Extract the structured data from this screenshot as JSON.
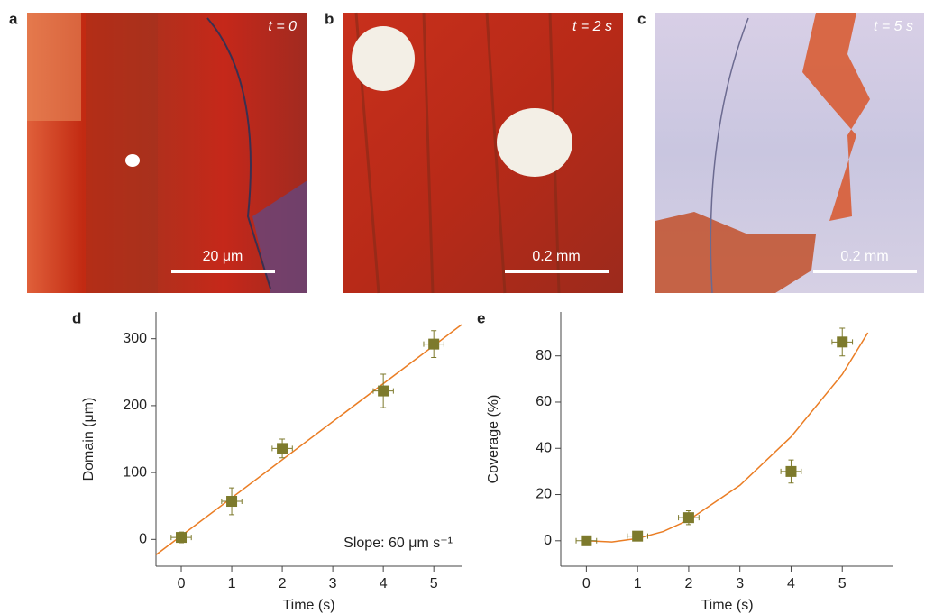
{
  "panels": [
    {
      "label": "a",
      "time": "t = 0",
      "scale_bar": "20 μm"
    },
    {
      "label": "b",
      "time": "t = 2 s",
      "scale_bar": "0.2 mm"
    },
    {
      "label": "c",
      "time": "t = 5 s",
      "scale_bar": "0.2 mm"
    }
  ],
  "chart_data": [
    {
      "type": "scatter",
      "label": "d",
      "x_label": "Time (s)",
      "y_label": "Domain (μm)",
      "annotation": "Slope: 60 μm s⁻¹",
      "x": [
        0,
        1,
        2,
        4,
        5
      ],
      "values": [
        3,
        57,
        136,
        222,
        292
      ],
      "yerr": [
        8,
        20,
        14,
        25,
        20
      ],
      "xerr": [
        0.2,
        0.2,
        0.2,
        0.2,
        0.2
      ],
      "color": "#7d7a2c",
      "fit": {
        "x": [
          -0.5,
          5.55
        ],
        "values": [
          -23,
          321
        ],
        "color": "#ea7d24"
      },
      "xlim": [
        -0.5,
        5.55
      ],
      "ylim": [
        -40,
        340
      ],
      "xticks": [
        0,
        1,
        2,
        3,
        4,
        5
      ],
      "yticks": [
        0,
        100,
        200,
        300
      ]
    },
    {
      "type": "scatter",
      "label": "e",
      "x_label": "Time (s)",
      "y_label": "Coverage (%)",
      "x": [
        0,
        1,
        2,
        4,
        5
      ],
      "values": [
        0,
        2,
        10,
        30,
        86
      ],
      "yerr": [
        2,
        2,
        3,
        5,
        6
      ],
      "xerr": [
        0.2,
        0.2,
        0.2,
        0.2,
        0.2
      ],
      "color": "#7d7a2c",
      "fit": {
        "x": [
          0,
          0.5,
          1,
          1.5,
          2,
          3,
          4,
          5,
          5.5
        ],
        "values": [
          0,
          -0.5,
          1,
          4,
          9,
          24,
          45,
          72,
          90
        ],
        "color": "#ea7d24"
      },
      "xlim": [
        -0.5,
        6
      ],
      "ylim": [
        -11,
        99
      ],
      "xticks": [
        0,
        1,
        2,
        3,
        4,
        5
      ],
      "yticks": [
        0,
        20,
        40,
        60,
        80
      ]
    }
  ]
}
